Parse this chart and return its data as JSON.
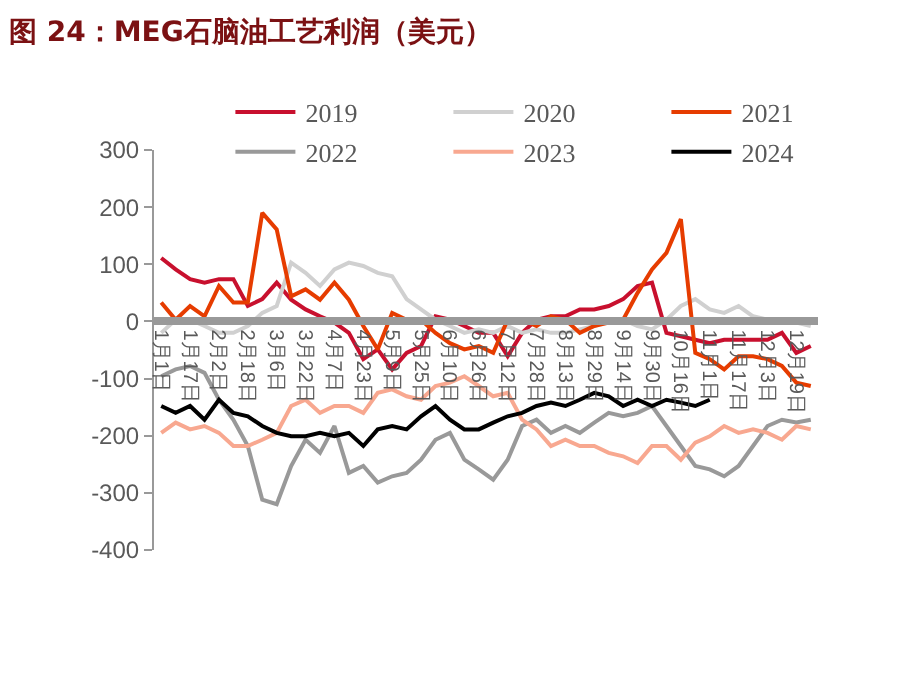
{
  "chart_data": {
    "type": "line",
    "title": "图 24：MEG石脑油工艺利润（美元）",
    "categories": [
      "1月1日",
      null,
      "1月17日",
      null,
      "2月2日",
      null,
      "2月18日",
      null,
      "3月6日",
      null,
      "3月22日",
      null,
      "4月7日",
      null,
      "4月23日",
      null,
      "5月9日",
      null,
      "5月25日",
      null,
      "6月10日",
      null,
      "6月26日",
      null,
      "7月12日",
      null,
      "7月28日",
      null,
      "8月13日",
      null,
      "8月29日",
      null,
      "9月14日",
      null,
      "9月30日",
      null,
      "10月16日",
      null,
      "11月1日",
      null,
      "11月17日",
      null,
      "12月3日",
      null,
      "12月19日",
      null
    ],
    "ylim": [
      -400,
      300
    ],
    "yticks": [
      -400,
      -300,
      -200,
      -100,
      0,
      100,
      200,
      300
    ],
    "legend": "top",
    "series": [
      {
        "name": "2019",
        "color": "#c8102e",
        "values": [
          111,
          91,
          74,
          68,
          74,
          74,
          27,
          39,
          68,
          38,
          21,
          9,
          -2,
          -20,
          -66,
          -49,
          -84,
          -55,
          -43,
          9,
          3,
          -8,
          -20,
          -20,
          -61,
          -20,
          3,
          9,
          9,
          21,
          21,
          27,
          39,
          62,
          68,
          -20,
          -26,
          -32,
          -38,
          -32,
          -32,
          -32,
          -32,
          -20,
          -55,
          -43
        ]
      },
      {
        "name": "2020",
        "color": "#d0d0d0",
        "values": [
          -20,
          3,
          3,
          -8,
          -20,
          -20,
          -8,
          15,
          27,
          103,
          85,
          62,
          91,
          103,
          97,
          85,
          79,
          39,
          21,
          3,
          -8,
          -20,
          -14,
          -20,
          -8,
          -20,
          -14,
          -20,
          -20,
          -14,
          -8,
          3,
          3,
          -8,
          -14,
          3,
          27,
          39,
          21,
          15,
          27,
          9,
          3,
          3,
          -2,
          -8
        ]
      },
      {
        "name": "2021",
        "color": "#e63c00",
        "values": [
          33,
          3,
          27,
          9,
          62,
          33,
          33,
          190,
          161,
          44,
          56,
          38,
          68,
          38,
          -8,
          -49,
          15,
          3,
          3,
          -20,
          -38,
          -49,
          -43,
          -55,
          3,
          3,
          -8,
          9,
          3,
          -20,
          -8,
          -2,
          3,
          50,
          91,
          120,
          179,
          -55,
          -66,
          -84,
          -61,
          -61,
          -66,
          -78,
          -107,
          -113
        ]
      },
      {
        "name": "2022",
        "color": "#999999",
        "values": [
          -96,
          -84,
          -78,
          -90,
          -137,
          -172,
          -218,
          -312,
          -320,
          -253,
          -207,
          -230,
          -183,
          -265,
          -253,
          -282,
          -271,
          -265,
          -242,
          -207,
          -195,
          -242,
          -259,
          -277,
          -242,
          -183,
          -172,
          -195,
          -183,
          -195,
          -177,
          -160,
          -166,
          -160,
          -148,
          -183,
          -218,
          -253,
          -259,
          -271,
          -253,
          -218,
          -183,
          -172,
          -177,
          -172
        ]
      },
      {
        "name": "2023",
        "color": "#f8a890",
        "values": [
          -195,
          -177,
          -189,
          -183,
          -195,
          -218,
          -218,
          -207,
          -195,
          -148,
          -137,
          -160,
          -148,
          -148,
          -160,
          -125,
          -119,
          -131,
          -137,
          -113,
          -107,
          -96,
          -113,
          -131,
          -125,
          -172,
          -189,
          -218,
          -207,
          -218,
          -218,
          -230,
          -236,
          -248,
          -218,
          -218,
          -242,
          -212,
          -201,
          -183,
          -195,
          -189,
          -195,
          -207,
          -183,
          -189
        ]
      },
      {
        "name": "2024",
        "color": "#000000",
        "values": [
          -148,
          -160,
          -148,
          -172,
          -137,
          -160,
          -166,
          -183,
          -195,
          -201,
          -201,
          -195,
          -201,
          -195,
          -218,
          -189,
          -183,
          -189,
          -166,
          -148,
          -172,
          -189,
          -189,
          -177,
          -166,
          -160,
          -148,
          -142,
          -148,
          -137,
          -125,
          -131,
          -148,
          -137,
          -148,
          -137,
          -142,
          -148,
          -137,
          null,
          null,
          null,
          null,
          null,
          null,
          null
        ]
      }
    ]
  }
}
